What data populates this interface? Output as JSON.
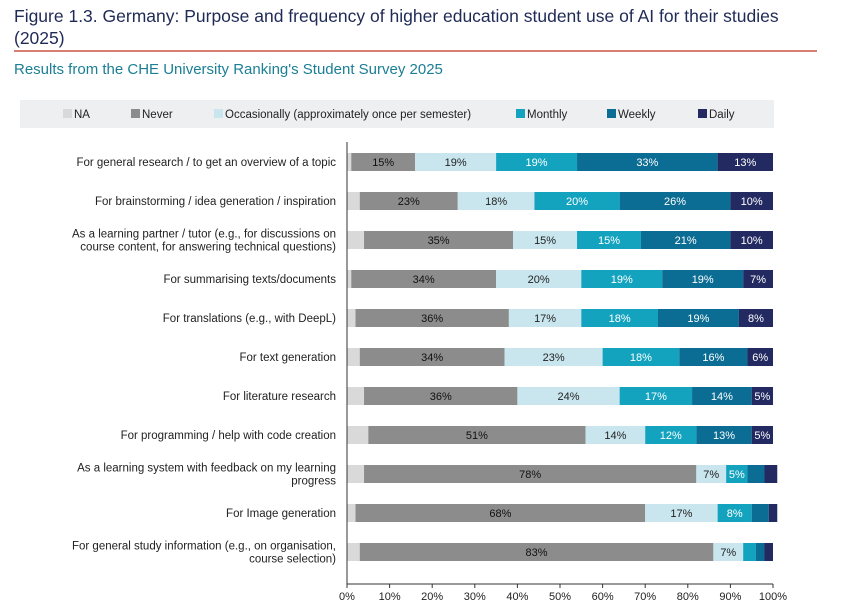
{
  "figure": {
    "title": "Figure 1.3. Germany: Purpose and frequency of higher education student use of AI for their studies (2025)",
    "subtitle": "Results from the CHE University Ranking's Student Survey 2025"
  },
  "colors": {
    "NA": "#d9d9d9",
    "Never": "#8c8c8c",
    "Occasionally": "#c9e6ef",
    "Monthly": "#14a3bf",
    "Weekly": "#0b6d93",
    "Daily": "#232a61"
  },
  "chart_data": {
    "type": "bar",
    "orientation": "horizontal",
    "stacked": true,
    "legend_position": "top",
    "categories": [
      "For general research / to get an overview of a topic",
      "For brainstorming / idea generation / inspiration",
      "As a learning partner / tutor (e.g., for discussions on course content, for answering technical questions)",
      "For summarising texts/documents",
      "For translations (e.g., with DeepL)",
      "For text generation",
      "For literature research",
      "For programming / help with code creation",
      "As a learning system with feedback on my learning progress",
      "For Image generation",
      "For general study information (e.g., on organisation, course selection)"
    ],
    "series": [
      {
        "name": "NA",
        "values": [
          1,
          3,
          4,
          1,
          2,
          3,
          4,
          5,
          4,
          2,
          3
        ]
      },
      {
        "name": "Never",
        "values": [
          15,
          23,
          35,
          34,
          36,
          34,
          36,
          51,
          78,
          68,
          83
        ]
      },
      {
        "name": "Occasionally (approximately once per semester)",
        "values": [
          19,
          18,
          15,
          20,
          17,
          23,
          24,
          14,
          7,
          17,
          7
        ]
      },
      {
        "name": "Monthly",
        "values": [
          19,
          20,
          15,
          19,
          18,
          18,
          17,
          12,
          5,
          8,
          3
        ]
      },
      {
        "name": "Weekly",
        "values": [
          33,
          26,
          21,
          19,
          19,
          16,
          14,
          13,
          4,
          4,
          2
        ]
      },
      {
        "name": "Daily",
        "values": [
          13,
          10,
          10,
          7,
          8,
          6,
          5,
          5,
          3,
          2,
          2
        ]
      }
    ],
    "xlim": [
      0,
      100
    ],
    "xticks": [
      "0%",
      "10%",
      "20%",
      "30%",
      "40%",
      "50%",
      "60%",
      "70%",
      "80%",
      "90%",
      "100%"
    ],
    "label_min_value": 5,
    "grid": false
  }
}
